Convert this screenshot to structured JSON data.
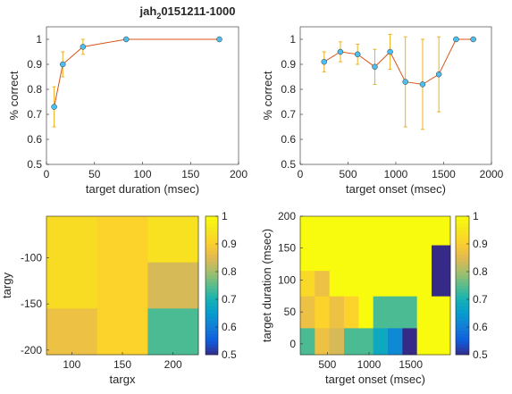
{
  "figure": {
    "title_main": "jah",
    "title_sub": "2",
    "title_rest": "0151211-1000"
  },
  "colors": {
    "line": "#d95319",
    "errorbar": "#edb120",
    "marker": "#4dbeee",
    "axis": "#262626"
  },
  "chart_data": [
    {
      "type": "line",
      "panel": "top-left",
      "xlabel": "target duration (msec)",
      "ylabel": "% correct",
      "xlim": [
        0,
        200
      ],
      "ylim": [
        0.5,
        1.05
      ],
      "xticks": [
        0,
        50,
        100,
        150,
        200
      ],
      "yticks": [
        0.5,
        0.6,
        0.7,
        0.8,
        0.9,
        1
      ],
      "x": [
        8,
        17,
        38,
        83,
        180
      ],
      "y": [
        0.73,
        0.9,
        0.97,
        1.0,
        1.0
      ],
      "err": [
        0.08,
        0.05,
        0.03,
        0.0,
        0.0
      ],
      "grid": false
    },
    {
      "type": "line",
      "panel": "top-right",
      "xlabel": "target onset (msec)",
      "ylabel": "% correct",
      "xlim": [
        0,
        2000
      ],
      "ylim": [
        0.5,
        1.05
      ],
      "xticks": [
        0,
        500,
        1000,
        1500,
        2000
      ],
      "yticks": [
        0.5,
        0.6,
        0.7,
        0.8,
        0.9,
        1
      ],
      "x": [
        250,
        420,
        600,
        780,
        940,
        1100,
        1280,
        1450,
        1630,
        1810
      ],
      "y": [
        0.91,
        0.95,
        0.94,
        0.89,
        0.95,
        0.83,
        0.82,
        0.86,
        1.0,
        1.0
      ],
      "err": [
        0.04,
        0.04,
        0.04,
        0.07,
        0.07,
        0.18,
        0.18,
        0.15,
        0.0,
        0.0
      ],
      "grid": false
    },
    {
      "type": "heatmap",
      "panel": "bottom-left",
      "xlabel": "targx",
      "ylabel": "targy",
      "xticks": [
        100,
        150,
        200
      ],
      "yticks": [
        -100,
        -150,
        -200
      ],
      "x": [
        100,
        150,
        200
      ],
      "y": [
        -80,
        -130,
        -180
      ],
      "values": [
        [
          0.93,
          0.91,
          0.94
        ],
        [
          0.93,
          0.91,
          0.84
        ],
        [
          0.87,
          0.91,
          0.74
        ]
      ],
      "clim": [
        0.5,
        1
      ],
      "colorbar_ticks": [
        0.5,
        0.6,
        0.7,
        0.8,
        0.9,
        1
      ]
    },
    {
      "type": "heatmap",
      "panel": "bottom-right",
      "xlabel": "target onset (msec)",
      "ylabel": "target duration (msec)",
      "xlim": [
        175,
        1975
      ],
      "ylim": [
        -17,
        200
      ],
      "xticks": [
        500,
        1000,
        1500
      ],
      "yticks": [
        0,
        50,
        100,
        150,
        200
      ],
      "x_edges": [
        175,
        350,
        525,
        700,
        875,
        1050,
        1225,
        1400,
        1575,
        1750,
        1975
      ],
      "y_edges": [
        -17,
        25,
        75,
        115,
        155,
        200
      ],
      "values": [
        [
          0.74,
          0.87,
          0.84,
          0.74,
          0.74,
          0.68,
          0.62,
          0.5,
          1.0,
          1.0
        ],
        [
          0.87,
          0.91,
          0.87,
          0.91,
          1.0,
          0.74,
          0.74,
          0.74,
          1.0,
          1.0
        ],
        [
          0.92,
          0.87,
          1.0,
          1.0,
          1.0,
          1.0,
          1.0,
          1.0,
          1.0,
          0.5
        ],
        [
          1.0,
          1.0,
          1.0,
          1.0,
          1.0,
          1.0,
          1.0,
          1.0,
          1.0,
          0.5
        ],
        [
          1.0,
          1.0,
          1.0,
          1.0,
          1.0,
          1.0,
          1.0,
          1.0,
          1.0,
          1.0
        ]
      ],
      "clim": [
        0.5,
        1
      ],
      "colorbar_ticks": [
        0.5,
        0.6,
        0.7,
        0.8,
        0.9,
        1
      ]
    }
  ]
}
